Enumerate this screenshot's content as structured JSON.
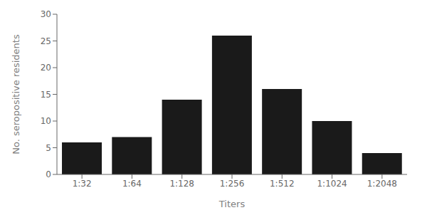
{
  "chart_data": {
    "type": "bar",
    "categories": [
      "1:32",
      "1:64",
      "1:128",
      "1:256",
      "1:512",
      "1:1024",
      "1:2048"
    ],
    "values": [
      6,
      7,
      14,
      26,
      16,
      10,
      4
    ],
    "color": "#1a1a1a",
    "xlabel": "Titers",
    "ylabel": "No. seropositive residents",
    "ylim": [
      0,
      30
    ],
    "yticks": [
      0,
      5,
      10,
      15,
      20,
      25,
      30
    ],
    "grid": false
  }
}
